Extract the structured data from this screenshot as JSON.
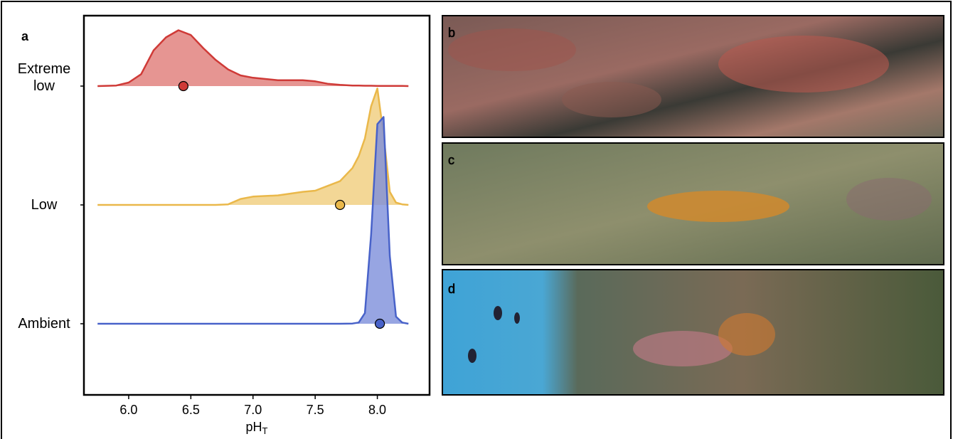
{
  "panel_label": "a",
  "photo_labels": [
    "b",
    "c",
    "d"
  ],
  "chart_data": {
    "type": "ridgeline",
    "xlabel": "pH",
    "xlabel_subscript": "T",
    "xlim": [
      5.64,
      8.42
    ],
    "xticks": [
      {
        "value": 6,
        "label": "6.0"
      },
      {
        "value": 6.5,
        "label": "6.5"
      },
      {
        "value": 7,
        "label": "7.0"
      },
      {
        "value": 7.5,
        "label": "7.5"
      },
      {
        "value": 8,
        "label": "8.0"
      }
    ],
    "x": [
      5.75,
      5.9,
      6.0,
      6.1,
      6.2,
      6.3,
      6.4,
      6.5,
      6.6,
      6.7,
      6.8,
      6.9,
      7.0,
      7.2,
      7.4,
      7.5,
      7.6,
      7.7,
      7.8,
      7.85,
      7.9,
      7.95,
      8.0,
      8.05,
      8.1,
      8.15,
      8.2,
      8.25
    ],
    "series": [
      {
        "name": "Extreme low",
        "color": "#cf3a37",
        "fill": "#e07a77",
        "mean": 6.44,
        "values": [
          0,
          0.005,
          0.03,
          0.1,
          0.3,
          0.41,
          0.47,
          0.43,
          0.32,
          0.22,
          0.14,
          0.09,
          0.07,
          0.05,
          0.05,
          0.04,
          0.02,
          0.01,
          0.005,
          0.004,
          0.003,
          0.003,
          0.002,
          0.002,
          0.002,
          0.001,
          0.001,
          0
        ]
      },
      {
        "name": "Low",
        "color": "#eab84a",
        "fill": "#f0cd7c",
        "mean": 7.7,
        "values": [
          0,
          0,
          0,
          0,
          0,
          0,
          0,
          0,
          0,
          0,
          0.005,
          0.05,
          0.07,
          0.08,
          0.11,
          0.12,
          0.16,
          0.2,
          0.31,
          0.41,
          0.56,
          0.83,
          0.98,
          0.59,
          0.11,
          0.02,
          0.005,
          0
        ]
      },
      {
        "name": "Ambient",
        "color": "#4862c9",
        "fill": "#7d8fdb",
        "mean": 8.02,
        "values": [
          0,
          0,
          0,
          0,
          0,
          0,
          0,
          0,
          0,
          0,
          0,
          0,
          0,
          0,
          0,
          0,
          0,
          0,
          0.002,
          0.01,
          0.09,
          0.75,
          1.68,
          1.74,
          0.57,
          0.06,
          0.01,
          0
        ]
      }
    ]
  }
}
